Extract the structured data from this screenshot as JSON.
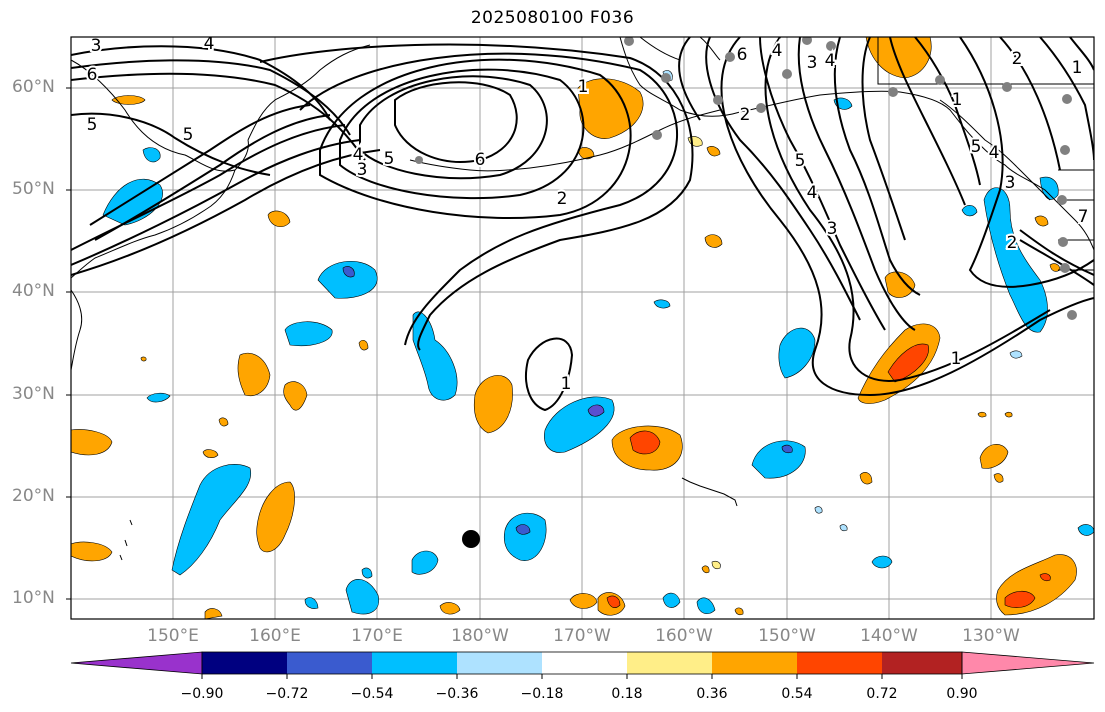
{
  "title": "2025080100 F036",
  "map": {
    "lat_labels": [
      "60°N",
      "50°N",
      "40°N",
      "30°N",
      "20°N",
      "10°N"
    ],
    "lon_labels": [
      "150°E",
      "160°E",
      "170°E",
      "180°W",
      "170°W",
      "160°W",
      "150°W",
      "140°W",
      "130°W"
    ],
    "contour_labels": [
      "3",
      "4",
      "6",
      "5",
      "5",
      "4",
      "3",
      "5",
      "6",
      "2",
      "1",
      "1",
      "6",
      "4",
      "3",
      "4",
      "5",
      "4",
      "3",
      "2",
      "1",
      "1",
      "2",
      "1",
      "2",
      "5",
      "4",
      "3",
      "7"
    ],
    "colors": {
      "positive": [
        "#ffee88",
        "#ffa500",
        "#ff4500",
        "#b22222"
      ],
      "negative": [
        "#aee2ff",
        "#00bfff",
        "#3a5bcf",
        "#5a4fd0"
      ],
      "contour": "#000000",
      "coast": "#000000",
      "grid": "#a0a0a0",
      "station": "#808080"
    }
  },
  "colorbar": {
    "colors": [
      "#9932cc",
      "#000080",
      "#3a5bcf",
      "#00bfff",
      "#aee2ff",
      "#ffffff",
      "#ffee88",
      "#ffa500",
      "#ff4500",
      "#b22222",
      "#ff88aa"
    ],
    "ticks": [
      "−0.90",
      "−0.72",
      "−0.54",
      "−0.36",
      "−0.18",
      "0.18",
      "0.36",
      "0.54",
      "0.72",
      "0.90"
    ]
  }
}
